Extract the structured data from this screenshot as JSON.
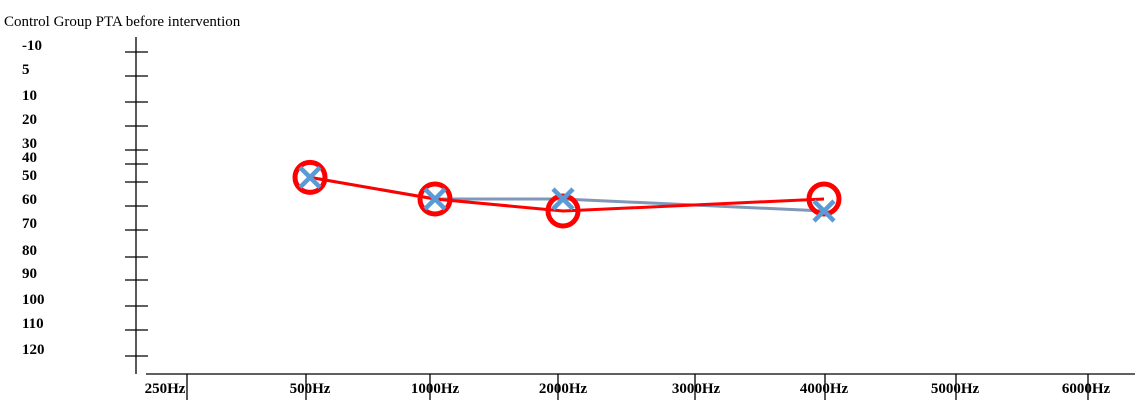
{
  "chart_data": {
    "type": "line",
    "title": "Control Group PTA before intervention",
    "xlabel": "",
    "ylabel": "",
    "y_tick_labels": [
      "-10",
      "5",
      "10",
      "20",
      "30",
      "40",
      "50",
      "60",
      "70",
      "80",
      "90",
      "100",
      "110",
      "120"
    ],
    "categories": [
      "250Hz",
      "500Hz",
      "1000Hz",
      "2000Hz",
      "3000Hz",
      "4000Hz",
      "5000Hz",
      "6000Hz"
    ],
    "grid": false,
    "legend": "none",
    "series": [
      {
        "name": "",
        "color": "#7f97b8",
        "marker": "x",
        "marker_color": "#5b9bd5",
        "values": [
          null,
          51,
          60,
          60,
          null,
          65,
          null,
          null
        ]
      },
      {
        "name": "",
        "color": "#ff0000",
        "marker": "circle",
        "marker_color": "#ff0000",
        "values": [
          null,
          51,
          60,
          65,
          null,
          60,
          null,
          null
        ]
      }
    ]
  }
}
